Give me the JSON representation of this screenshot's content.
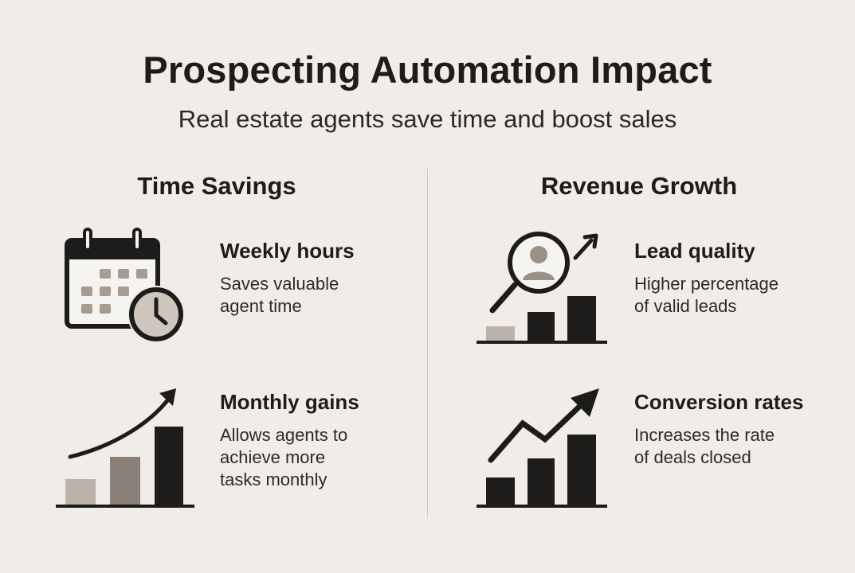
{
  "header": {
    "title": "Prospecting Automation Impact",
    "subtitle": "Real estate agents save time and boost sales"
  },
  "left_section": {
    "title": "Time Savings",
    "items": [
      {
        "title": "Weekly hours",
        "description": "Saves valuable\nagent time",
        "icon": "calendar-clock-icon"
      },
      {
        "title": "Monthly gains",
        "description": "Allows agents to\nachieve more\ntasks monthly",
        "icon": "growth-bar-chart-icon"
      }
    ]
  },
  "right_section": {
    "title": "Revenue Growth",
    "items": [
      {
        "title": "Lead quality",
        "description": "Higher percentage\nof valid leads",
        "icon": "magnifier-person-chart-icon"
      },
      {
        "title": "Conversion rates",
        "description": "Increases the rate\nof deals closed",
        "icon": "zigzag-trend-chart-icon"
      }
    ]
  },
  "colors": {
    "background": "#f0ede8",
    "dark": "#1e1c1a",
    "mid": "#8a8078",
    "light": "#bbb3aa"
  }
}
